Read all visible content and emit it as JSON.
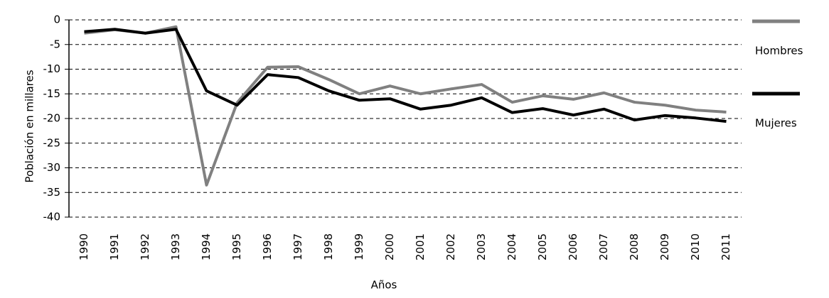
{
  "chart_data": {
    "type": "line",
    "x_label": "Años",
    "y_label": "Población  en millares",
    "categories": [
      "1990",
      "1991",
      "1992",
      "1993",
      "1994",
      "1995",
      "1996",
      "1997",
      "1998",
      "1999",
      "2000",
      "2001",
      "2002",
      "2003",
      "2004",
      "2005",
      "2006",
      "2007",
      "2008",
      "2009",
      "2010",
      "2011"
    ],
    "series": [
      {
        "name": "Hombres",
        "color": "#808080",
        "values": [
          -2.7,
          -2.0,
          -2.7,
          -1.4,
          -33.5,
          -16.8,
          -9.6,
          -9.5,
          -12.1,
          -15.0,
          -13.4,
          -15.0,
          -14.0,
          -13.1,
          -16.7,
          -15.4,
          -16.1,
          -14.8,
          -16.7,
          -17.3,
          -18.3,
          -18.7
        ]
      },
      {
        "name": "Mujeres",
        "color": "#000000",
        "values": [
          -2.4,
          -1.9,
          -2.7,
          -1.9,
          -14.4,
          -17.3,
          -11.1,
          -11.7,
          -14.4,
          -16.3,
          -16.0,
          -18.1,
          -17.3,
          -15.8,
          -18.8,
          -18.0,
          -19.3,
          -18.1,
          -20.3,
          -19.4,
          -19.9,
          -20.6
        ]
      }
    ],
    "ylim": [
      -40,
      0
    ],
    "yticks": [
      0,
      -5,
      -10,
      -15,
      -20,
      -25,
      -30,
      -35,
      -40
    ],
    "grid": true,
    "legend": "right"
  }
}
